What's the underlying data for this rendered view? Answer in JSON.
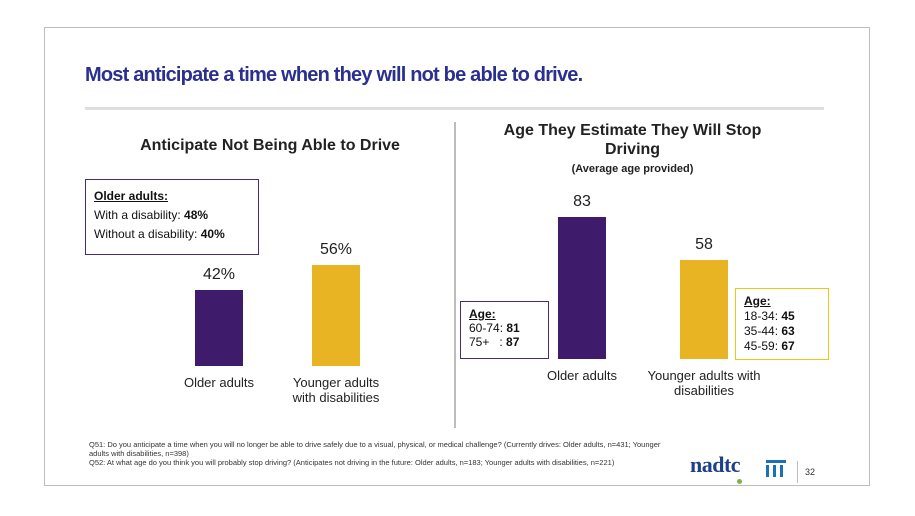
{
  "slide": {
    "title": "Most anticipate a time when they will not be able to drive.",
    "page_number": "32",
    "logo_text": "nadtc"
  },
  "colors": {
    "purple": "#3f1c6b",
    "gold": "#e8b423",
    "title_blue": "#2b2f8f"
  },
  "left_box": {
    "heading": "Older adults:",
    "line1_label": "With a disability: ",
    "line1_value": "48%",
    "line2_label": "Without a disability: ",
    "line2_value": "40%"
  },
  "right_box_older": {
    "heading": "Age:",
    "line1_label": "60-74: ",
    "line1_value": "81",
    "line2_label": "75+   : ",
    "line2_value": "87"
  },
  "right_box_younger": {
    "heading": "Age:",
    "line1_label": "18-34: ",
    "line1_value": "45",
    "line2_label": "35-44: ",
    "line2_value": "63",
    "line3_label": "45-59: ",
    "line3_value": "67"
  },
  "chart_data": [
    {
      "type": "bar",
      "title": "Anticipate Not Being Able to Drive",
      "categories": [
        "Older adults",
        "Younger adults with disabilities"
      ],
      "values": [
        42,
        56
      ],
      "value_labels": [
        "42%",
        "56%"
      ],
      "unit": "%",
      "colors": [
        "#3f1c6b",
        "#e8b423"
      ],
      "grid": false
    },
    {
      "type": "bar",
      "title": "Age They Estimate They Will Stop Driving",
      "subtitle": "(Average age provided)",
      "categories": [
        "Older adults",
        "Younger adults with disabilities"
      ],
      "values": [
        83,
        58
      ],
      "value_labels": [
        "83",
        "58"
      ],
      "colors": [
        "#3f1c6b",
        "#e8b423"
      ],
      "grid": false
    }
  ],
  "footnotes": {
    "q51": "Q51: Do you anticipate a time when you will no longer be able to drive safely due to a visual, physical, or medical challenge? (Currently drives: Older adults, n=431; Younger adults with disabilities, n=398)",
    "q52": "Q52: At what age do you think you will probably stop driving? (Anticipates not driving in the future: Older adults, n=183; Younger adults with disabilities, n=221)"
  }
}
